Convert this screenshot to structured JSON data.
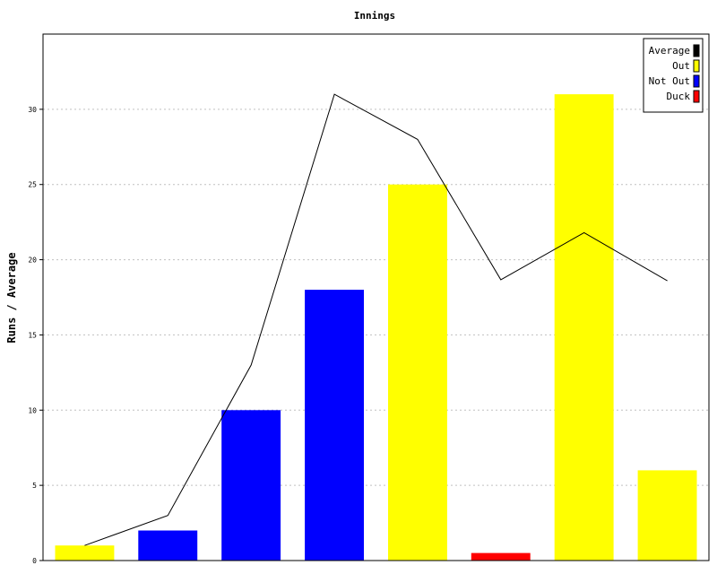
{
  "chart_data": {
    "type": "bar",
    "title": "Innings",
    "xlabel": "",
    "ylabel": "Runs / Average",
    "ylim": [
      0,
      35
    ],
    "yticks": [
      0,
      5,
      10,
      15,
      20,
      25,
      30
    ],
    "grid": true,
    "legend_position": "top-right",
    "legend": [
      {
        "name": "Average",
        "color": "#000000"
      },
      {
        "name": "Out",
        "color": "#ffff00"
      },
      {
        "name": "Not Out",
        "color": "#0000ff"
      },
      {
        "name": "Duck",
        "color": "#ff0000"
      }
    ],
    "bars": [
      {
        "value": 1,
        "kind": "Out"
      },
      {
        "value": 2,
        "kind": "Not Out"
      },
      {
        "value": 10,
        "kind": "Not Out"
      },
      {
        "value": 18,
        "kind": "Not Out"
      },
      {
        "value": 25,
        "kind": "Out"
      },
      {
        "value": 0.5,
        "kind": "Duck"
      },
      {
        "value": 31,
        "kind": "Out"
      },
      {
        "value": 6,
        "kind": "Out"
      }
    ],
    "average_line": {
      "name": "Average",
      "values": [
        1,
        3,
        13,
        31,
        28,
        18.67,
        21.8,
        18.6
      ]
    }
  }
}
